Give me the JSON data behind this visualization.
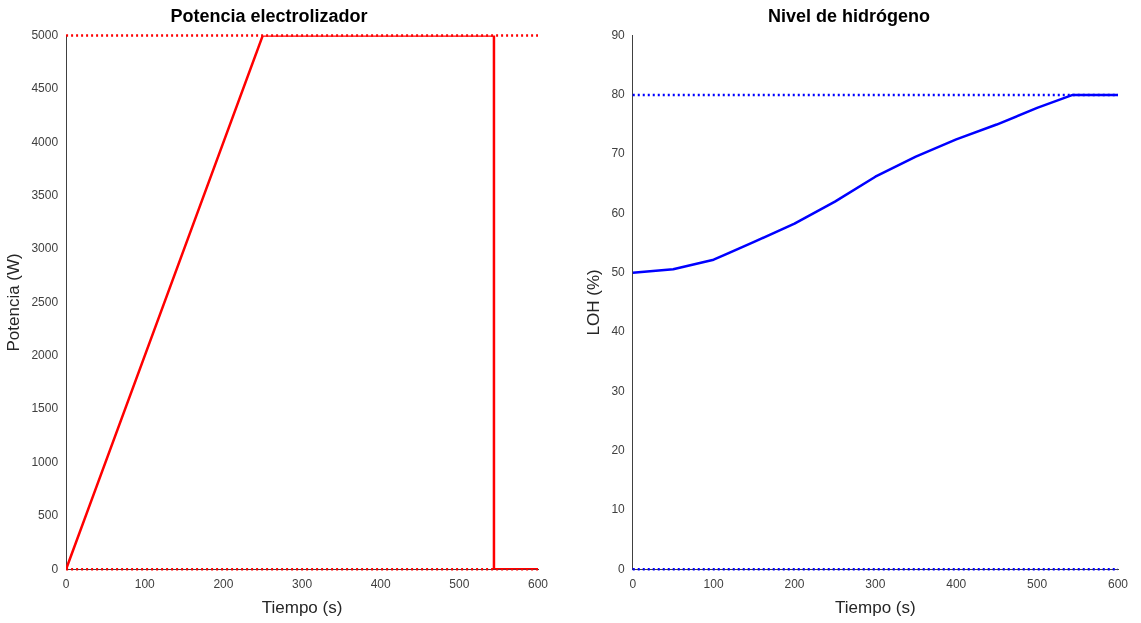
{
  "chart_data": [
    {
      "type": "line",
      "title": "Potencia electrolizador",
      "xlabel": "Tiempo (s)",
      "ylabel": "Potencia (W)",
      "xlim": [
        0,
        600
      ],
      "xticks": [
        0,
        100,
        200,
        300,
        400,
        500,
        600
      ],
      "ylim": [
        0,
        5000
      ],
      "yticks": [
        0,
        500,
        1000,
        1500,
        2000,
        2500,
        3000,
        3500,
        4000,
        4500,
        5000
      ],
      "grid": false,
      "legend": false,
      "marker": "none",
      "line_style": "solid",
      "series": [
        {
          "color": "#ff0000",
          "x": [
            0,
            250,
            544,
            544,
            600
          ],
          "values": [
            0,
            5000,
            5000,
            0,
            0
          ]
        }
      ],
      "ref_lines": [
        {
          "axis": "y",
          "value": 0,
          "color": "#ff0000",
          "line_style": "dotted"
        },
        {
          "axis": "y",
          "value": 5000,
          "color": "#ff0000",
          "line_style": "dotted"
        }
      ]
    },
    {
      "type": "line",
      "title": "Nivel de hidrógeno",
      "xlabel": "Tiempo (s)",
      "ylabel": "LOH (%)",
      "xlim": [
        0,
        600
      ],
      "xticks": [
        0,
        100,
        200,
        300,
        400,
        500,
        600
      ],
      "ylim": [
        0,
        90
      ],
      "yticks": [
        0,
        10,
        20,
        30,
        40,
        50,
        60,
        70,
        80,
        90
      ],
      "grid": false,
      "legend": false,
      "marker": "none",
      "line_style": "solid",
      "series": [
        {
          "color": "#0000ff",
          "x": [
            0,
            50,
            100,
            150,
            200,
            250,
            300,
            350,
            400,
            450,
            500,
            544,
            600
          ],
          "values": [
            50,
            50.6,
            52.2,
            55.2,
            58.3,
            62,
            66.2,
            69.6,
            72.5,
            75,
            77.8,
            80,
            80
          ]
        }
      ],
      "ref_lines": [
        {
          "axis": "y",
          "value": 0,
          "color": "#0000ff",
          "line_style": "dotted"
        },
        {
          "axis": "y",
          "value": 80,
          "color": "#0000ff",
          "line_style": "dotted"
        }
      ]
    }
  ]
}
